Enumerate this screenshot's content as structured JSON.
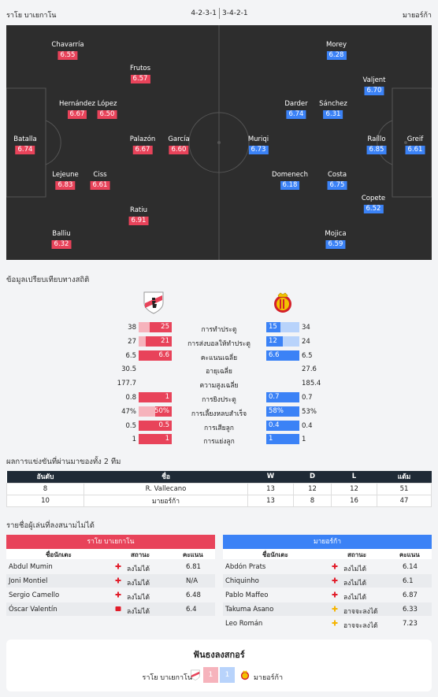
{
  "header": {
    "home": "ราโย บาเยกาโน",
    "away": "มายอร์ก้า",
    "home_formation": "4-2-3-1",
    "away_formation": "3-4-2-1"
  },
  "home_players": [
    {
      "name": "Chavarría",
      "rating": "6.55"
    },
    {
      "name": "Frutos",
      "rating": "6.57"
    },
    {
      "name": "Hernández",
      "rating": "6.67"
    },
    {
      "name": "López",
      "rating": "6.50"
    },
    {
      "name": "Batalla",
      "rating": "6.74"
    },
    {
      "name": "Palazón",
      "rating": "6.67"
    },
    {
      "name": "García",
      "rating": "6.60"
    },
    {
      "name": "Lejeune",
      "rating": "6.83"
    },
    {
      "name": "Ciss",
      "rating": "6.61"
    },
    {
      "name": "Ratiu",
      "rating": "6.91"
    },
    {
      "name": "Balliu",
      "rating": "6.32"
    }
  ],
  "away_players": [
    {
      "name": "Morey",
      "rating": "6.28"
    },
    {
      "name": "Valjent",
      "rating": "6.70"
    },
    {
      "name": "Darder",
      "rating": "6.74"
    },
    {
      "name": "Sánchez",
      "rating": "6.31"
    },
    {
      "name": "Muriqi",
      "rating": "6.73"
    },
    {
      "name": "Raíllo",
      "rating": "6.85"
    },
    {
      "name": "Greif",
      "rating": "6.61"
    },
    {
      "name": "Domenech",
      "rating": "6.18"
    },
    {
      "name": "Costa",
      "rating": "6.75"
    },
    {
      "name": "Copete",
      "rating": "6.52"
    },
    {
      "name": "Mojica",
      "rating": "6.59"
    }
  ],
  "stats": {
    "title": "ข้อมูลเปรียบเทียบทางสถิติ",
    "rows": [
      {
        "label": "การทำประตู",
        "home": "38",
        "home_box": "25",
        "away": "34",
        "away_box": "15",
        "hf": 0.66,
        "af": 0.44,
        "bar": true
      },
      {
        "label": "การส่งบอลให้ทำประตู",
        "home": "27",
        "home_box": "21",
        "away": "24",
        "away_box": "12",
        "hf": 0.78,
        "af": 0.5,
        "bar": true
      },
      {
        "label": "คะแนนเฉลี่ย",
        "home": "6.5",
        "home_box": "6.6",
        "away": "6.5",
        "away_box": "6.6",
        "hf": 1,
        "af": 1,
        "bar": true
      },
      {
        "label": "อายุเฉลี่ย",
        "home": "30.5",
        "home_box": "",
        "away": "27.6",
        "away_box": "",
        "hf": 0,
        "af": 0,
        "bar": false
      },
      {
        "label": "ความสูงเฉลี่ย",
        "home": "177.7",
        "home_box": "",
        "away": "185.4",
        "away_box": "",
        "hf": 0,
        "af": 0,
        "bar": false
      },
      {
        "label": "การยิงประตู",
        "home": "0.8",
        "home_box": "1",
        "away": "0.7",
        "away_box": "0.7",
        "hf": 1,
        "af": 1,
        "bar": true
      },
      {
        "label": "การเลี้ยงหลบสำเร็จ",
        "home": "47%",
        "home_box": "50%",
        "away": "53%",
        "away_box": "58%",
        "hf": 0.5,
        "af": 1,
        "bar": true
      },
      {
        "label": "การเสียลูก",
        "home": "0.5",
        "home_box": "0.5",
        "away": "0.4",
        "away_box": "0.4",
        "hf": 1,
        "af": 1,
        "bar": true
      },
      {
        "label": "การแย่งลูก",
        "home": "1",
        "home_box": "1",
        "away": "1",
        "away_box": "1",
        "hf": 1,
        "af": 1,
        "bar": true
      }
    ]
  },
  "standings": {
    "title": "ผลการแข่งขันที่ผ่านมาของทั้ง 2 ทีม",
    "headers": [
      "อันดับ",
      "ชื่อ",
      "W",
      "D",
      "L",
      "แต้ม"
    ],
    "rows": [
      [
        "8",
        "R. Vallecano",
        "13",
        "12",
        "12",
        "51"
      ],
      [
        "10",
        "มายอร์ก้า",
        "13",
        "8",
        "16",
        "47"
      ]
    ]
  },
  "unavailable": {
    "title": "รายชื่อผู้เล่นที่ลงสนามไม่ได้",
    "home_team": "ราโย บาเยกาโน",
    "away_team": "มายอร์ก้า",
    "col_name": "ชื่อนักเตะ",
    "col_status": "สถานะ",
    "col_score": "คะแนน",
    "home_rows": [
      {
        "name": "Abdul Mumin",
        "status": "ลงไม่ได้",
        "score": "6.81",
        "icon": "injury-cross-icon"
      },
      {
        "name": "Joni Montiel",
        "status": "ลงไม่ได้",
        "score": "N/A",
        "icon": "injury-cross-icon"
      },
      {
        "name": "Sergio Camello",
        "status": "ลงไม่ได้",
        "score": "6.48",
        "icon": "injury-cross-icon"
      },
      {
        "name": "Óscar Valentín",
        "status": "ลงไม่ได้",
        "score": "6.4",
        "icon": "red-card-icon"
      }
    ],
    "away_rows": [
      {
        "name": "Abdón Prats",
        "status": "ลงไม่ได้",
        "score": "6.14",
        "icon": "injury-cross-icon"
      },
      {
        "name": "Chiquinho",
        "status": "ลงไม่ได้",
        "score": "6.1",
        "icon": "injury-cross-icon"
      },
      {
        "name": "Pablo Maffeo",
        "status": "ลงไม่ได้",
        "score": "6.87",
        "icon": "injury-cross-icon"
      },
      {
        "name": "Takuma Asano",
        "status": "อาจจะลงได้",
        "score": "6.33",
        "icon": "doubtful-cross-icon"
      },
      {
        "name": "Leo Román",
        "status": "อาจจะลงได้",
        "score": "7.23",
        "icon": "doubtful-cross-icon"
      }
    ]
  },
  "h2h": {
    "title": "ฟันธงลงสกอร์",
    "home": "ราโย บาเยกาโน",
    "away": "มายอร์ก้า",
    "home_score": "1",
    "away_score": "1"
  },
  "colors": {
    "home": "#e8435a",
    "away": "#3b82f6",
    "pitch": "#2d2d2d"
  }
}
